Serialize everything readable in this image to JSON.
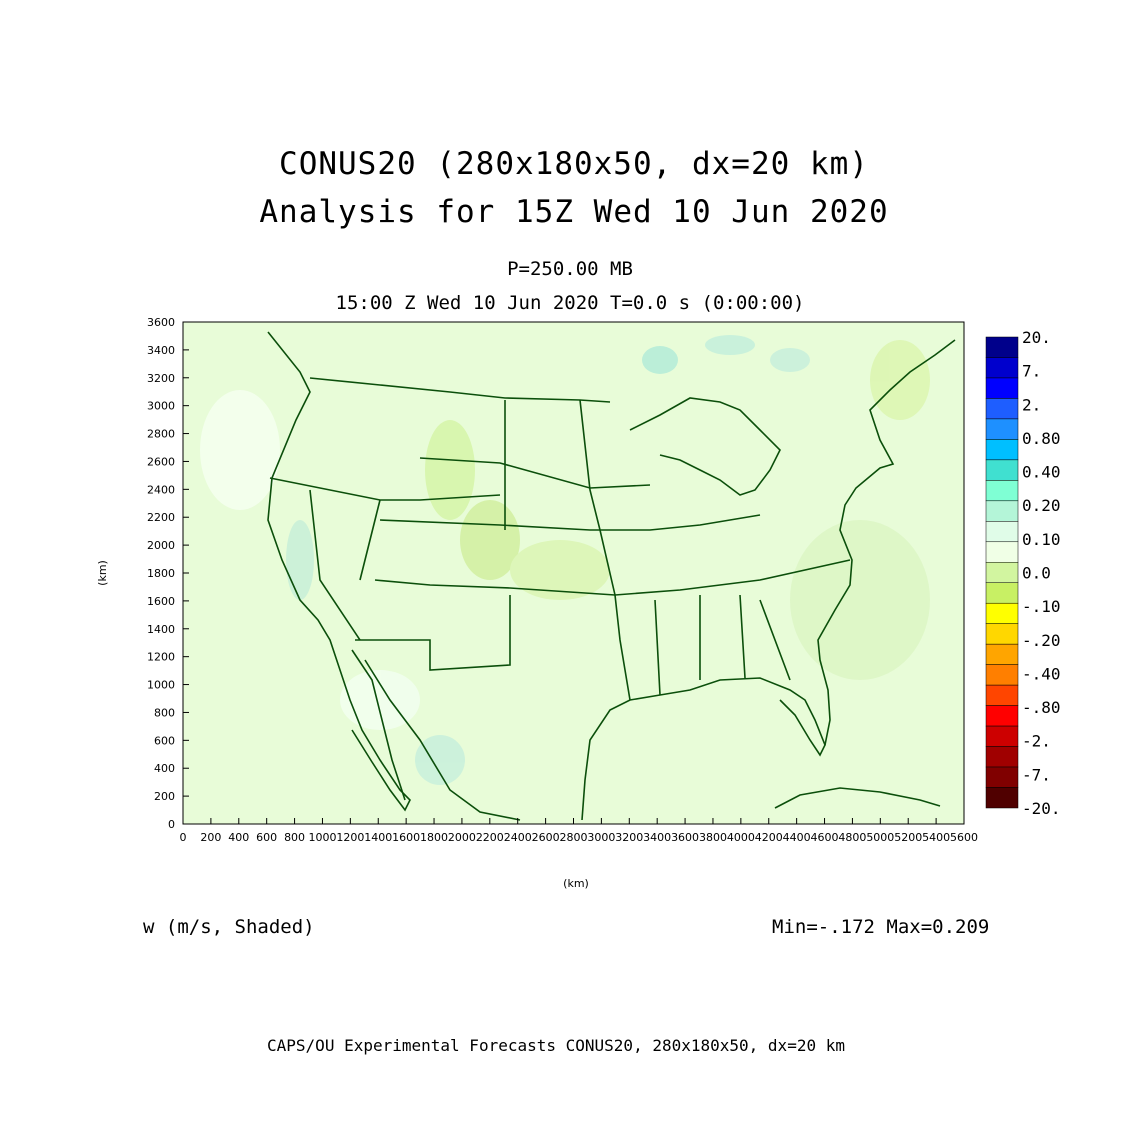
{
  "header": {
    "title_line1": "CONUS20 (280x180x50, dx=20 km)",
    "title_line2": "Analysis for 15Z Wed 10 Jun 2020",
    "level": "P=250.00 MB",
    "valid_time": "15:00 Z Wed 10 Jun 2020    T=0.0 s (0:00:00)"
  },
  "axes": {
    "x_label": "(km)",
    "y_label": "(km)",
    "x_ticks": [
      "0",
      "200",
      "400",
      "600",
      "800",
      "1000",
      "1200",
      "1400",
      "1600",
      "1800",
      "2000",
      "2200",
      "2400",
      "2600",
      "2800",
      "3000",
      "3200",
      "3400",
      "3600",
      "3800",
      "4000",
      "4200",
      "4400",
      "4600",
      "4800",
      "5000",
      "5200",
      "5400",
      "5600"
    ],
    "y_ticks": [
      "0",
      "200",
      "400",
      "600",
      "800",
      "1000",
      "1200",
      "1400",
      "1600",
      "1800",
      "2000",
      "2200",
      "2400",
      "2600",
      "2800",
      "3000",
      "3200",
      "3400",
      "3600"
    ],
    "x_range": [
      0,
      5600
    ],
    "y_range": [
      0,
      3600
    ]
  },
  "colorbar": {
    "labels": [
      "20.",
      "7.",
      "2.",
      "0.80",
      "0.40",
      "0.20",
      "0.10",
      "0.0",
      "-.10",
      "-.20",
      "-.40",
      "-.80",
      "-2.",
      "-7.",
      "-20."
    ],
    "colors": [
      "#00008b",
      "#0000cd",
      "#0000ff",
      "#1e5eff",
      "#1e90ff",
      "#00bfff",
      "#40e0d0",
      "#7fffd4",
      "#b4f5d8",
      "#e0fce8",
      "#f0ffe6",
      "#d2f5a0",
      "#c8f064",
      "#ffff00",
      "#ffd700",
      "#ffa500",
      "#ff7f00",
      "#ff4500",
      "#ff0000",
      "#cd0000",
      "#a00000",
      "#800000",
      "#500000"
    ],
    "color_bins": [
      {
        "color": "#00008b"
      },
      {
        "color": "#0000cd"
      },
      {
        "color": "#0000ff"
      },
      {
        "color": "#1e5eff"
      },
      {
        "color": "#1e90ff"
      },
      {
        "color": "#00bfff"
      },
      {
        "color": "#40e0d0"
      },
      {
        "color": "#7fffd4"
      },
      {
        "color": "#b4f5d8"
      },
      {
        "color": "#e0fce8"
      },
      {
        "color": "#f0ffe6"
      },
      {
        "color": "#d2f5a0"
      },
      {
        "color": "#c8f064"
      },
      {
        "color": "#ffff00"
      },
      {
        "color": "#ffd700"
      },
      {
        "color": "#ffa500"
      },
      {
        "color": "#ff7f00"
      },
      {
        "color": "#ff4500"
      },
      {
        "color": "#ff0000"
      },
      {
        "color": "#cd0000"
      },
      {
        "color": "#a00000"
      },
      {
        "color": "#800000"
      },
      {
        "color": "#500000"
      }
    ]
  },
  "field": {
    "description": "w (m/s, Shaded)",
    "stats": "Min=-.172 Max=0.209",
    "dominant_color": "#e8fcd8",
    "border_color": "#0b4f0b"
  },
  "footer": {
    "credit": "CAPS/OU Experimental Forecasts  CONUS20, 280x180x50, dx=20 km"
  }
}
